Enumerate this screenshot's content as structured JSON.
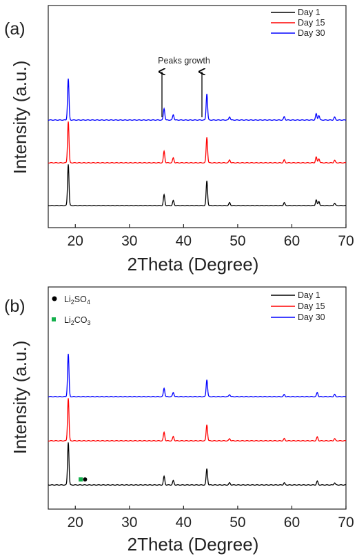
{
  "chart_data": [
    {
      "panel_label": "(a)",
      "type": "line",
      "xlabel": "2Theta (Degree)",
      "ylabel": "Intensity (a.u.)",
      "xlim": [
        15,
        70
      ],
      "xticks": [
        20,
        30,
        40,
        50,
        60,
        70
      ],
      "yticks_shown": false,
      "legend_position": "top-right",
      "series": [
        {
          "name": "Day 1",
          "color": "#000000",
          "baseline": 0.0,
          "peaks": [
            [
              18.7,
              1.0
            ],
            [
              36.4,
              0.26
            ],
            [
              38.1,
              0.12
            ],
            [
              44.3,
              0.6
            ],
            [
              48.5,
              0.07
            ],
            [
              58.6,
              0.07
            ],
            [
              64.5,
              0.14
            ],
            [
              65.0,
              0.1
            ],
            [
              67.9,
              0.06
            ]
          ]
        },
        {
          "name": "Day 15",
          "color": "#ff0000",
          "baseline": 1.0,
          "peaks": [
            [
              18.7,
              1.0
            ],
            [
              36.4,
              0.28
            ],
            [
              38.1,
              0.12
            ],
            [
              44.3,
              0.62
            ],
            [
              48.5,
              0.07
            ],
            [
              58.6,
              0.07
            ],
            [
              64.5,
              0.14
            ],
            [
              65.0,
              0.1
            ],
            [
              67.9,
              0.06
            ]
          ]
        },
        {
          "name": "Day 30",
          "color": "#0000ff",
          "baseline": 2.0,
          "peaks": [
            [
              18.7,
              1.0
            ],
            [
              36.4,
              0.28
            ],
            [
              38.1,
              0.13
            ],
            [
              44.3,
              0.64
            ],
            [
              48.5,
              0.08
            ],
            [
              58.6,
              0.08
            ],
            [
              64.5,
              0.15
            ],
            [
              65.0,
              0.11
            ],
            [
              67.9,
              0.07
            ]
          ]
        }
      ],
      "annotations": [
        {
          "text": "Peaks growth",
          "arrows_at_x": [
            36.0,
            43.8
          ]
        }
      ]
    },
    {
      "panel_label": "(b)",
      "type": "line",
      "xlabel": "2Theta (Degree)",
      "ylabel": "Intensity (a.u.)",
      "xlim": [
        15,
        70
      ],
      "xticks": [
        20,
        30,
        40,
        50,
        60,
        70
      ],
      "yticks_shown": false,
      "legend_position": "top-right",
      "series": [
        {
          "name": "Day 1",
          "color": "#000000",
          "baseline": 0.0,
          "peaks": [
            [
              18.7,
              1.0
            ],
            [
              36.4,
              0.2
            ],
            [
              38.1,
              0.1
            ],
            [
              44.3,
              0.38
            ],
            [
              48.5,
              0.05
            ],
            [
              58.6,
              0.05
            ],
            [
              64.7,
              0.09
            ],
            [
              67.9,
              0.05
            ]
          ]
        },
        {
          "name": "Day 15",
          "color": "#ff0000",
          "baseline": 1.0,
          "peaks": [
            [
              18.7,
              1.0
            ],
            [
              36.4,
              0.2
            ],
            [
              38.1,
              0.1
            ],
            [
              44.3,
              0.38
            ],
            [
              48.5,
              0.05
            ],
            [
              58.6,
              0.05
            ],
            [
              64.7,
              0.09
            ],
            [
              67.9,
              0.05
            ]
          ]
        },
        {
          "name": "Day 30",
          "color": "#0000ff",
          "baseline": 2.0,
          "peaks": [
            [
              18.7,
              1.0
            ],
            [
              36.4,
              0.2
            ],
            [
              38.1,
              0.1
            ],
            [
              44.3,
              0.4
            ],
            [
              48.5,
              0.05
            ],
            [
              58.6,
              0.05
            ],
            [
              64.7,
              0.1
            ],
            [
              67.9,
              0.05
            ]
          ]
        }
      ],
      "markers": [
        {
          "symbol": "circle",
          "color": "#000000",
          "label_main": "Li",
          "label_sub1": "2",
          "label_mid": "SO",
          "label_sub2": "4",
          "at_x": 21.8
        },
        {
          "symbol": "square",
          "color": "#14b04c",
          "label_main": "Li",
          "label_sub1": "2",
          "label_mid": "CO",
          "label_sub2": "3",
          "at_x": 21.0
        }
      ]
    }
  ]
}
